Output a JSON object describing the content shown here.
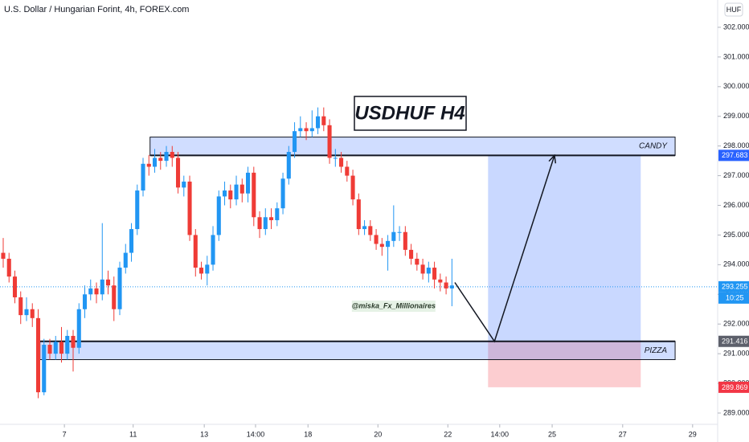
{
  "chart_data": {
    "type": "candlestick",
    "title": "U.S. Dollar / Hungarian Forint, 4h, FOREX.com",
    "currency": "HUF",
    "heading": "USDHUF H4",
    "watermark": "@miska_Fx_Millionaires",
    "up_color": "#2196f3",
    "down_color": "#ef3b36",
    "open": [
      294.4,
      294.2,
      293.6,
      292.9,
      292.3,
      292.5,
      292.2,
      289.7,
      291.3,
      291.0,
      291.4,
      291.0,
      291.6,
      291.2,
      292.5,
      293.0,
      293.2,
      293.0,
      293.5,
      293.3,
      292.5,
      293.9,
      294.4,
      295.2,
      296.5,
      297.4,
      297.3,
      297.6,
      297.5,
      297.8,
      297.6,
      296.6,
      296.8,
      295.0,
      293.9,
      293.7,
      294.0,
      295.0,
      296.3,
      296.5,
      296.2,
      296.7,
      296.4,
      297.1,
      295.6,
      295.2,
      295.6,
      295.5,
      295.9,
      296.9,
      297.8,
      298.5,
      298.6,
      298.5,
      298.6,
      299.0,
      298.7,
      297.6,
      297.6,
      297.3,
      297.0,
      296.2,
      295.2,
      295.3,
      295.0,
      294.7,
      294.6,
      294.8,
      295.1,
      295.1,
      294.5,
      294.2,
      294.0,
      293.7,
      293.9,
      293.5,
      293.4,
      293.2
    ],
    "high": [
      294.9,
      294.4,
      293.8,
      293.1,
      292.9,
      292.7,
      292.5,
      291.5,
      291.5,
      291.6,
      291.9,
      291.8,
      291.8,
      292.7,
      293.3,
      293.5,
      293.4,
      295.4,
      293.8,
      293.6,
      294.1,
      294.7,
      295.4,
      296.7,
      297.6,
      297.7,
      297.9,
      297.8,
      298.0,
      298.0,
      297.8,
      297.0,
      297.0,
      295.2,
      294.1,
      294.3,
      295.3,
      296.5,
      296.8,
      296.7,
      297.0,
      296.9,
      297.3,
      297.3,
      295.8,
      295.9,
      295.9,
      296.1,
      297.1,
      298.0,
      298.8,
      299.0,
      298.8,
      299.2,
      299.3,
      299.3,
      298.9,
      297.9,
      297.8,
      297.5,
      297.2,
      296.4,
      295.5,
      295.5,
      295.2,
      294.9,
      295.0,
      296.0,
      295.3,
      295.3,
      294.7,
      294.4,
      294.2,
      294.1,
      294.1,
      293.7,
      293.6,
      294.2
    ],
    "low": [
      293.9,
      293.4,
      292.7,
      292.0,
      292.1,
      291.9,
      289.5,
      289.6,
      290.8,
      290.8,
      290.7,
      290.8,
      290.4,
      291.0,
      292.2,
      292.8,
      292.7,
      292.8,
      293.0,
      292.1,
      292.3,
      293.7,
      294.1,
      295.0,
      296.3,
      297.0,
      297.1,
      297.2,
      297.3,
      297.3,
      296.4,
      296.3,
      294.8,
      293.6,
      293.5,
      293.3,
      293.8,
      294.8,
      296.0,
      295.9,
      296.0,
      296.1,
      296.1,
      295.3,
      294.9,
      295.0,
      295.2,
      295.3,
      295.7,
      296.7,
      297.6,
      298.3,
      298.2,
      298.3,
      298.4,
      298.5,
      297.4,
      297.3,
      297.1,
      296.8,
      296.0,
      295.0,
      295.0,
      294.8,
      294.5,
      294.3,
      293.8,
      294.6,
      294.8,
      294.3,
      294.0,
      293.8,
      293.5,
      293.4,
      293.2,
      293.1,
      293.0,
      292.6
    ],
    "close": [
      294.2,
      293.6,
      292.9,
      292.3,
      292.5,
      292.2,
      289.7,
      291.3,
      291.0,
      291.4,
      291.0,
      291.6,
      291.2,
      292.5,
      293.0,
      293.2,
      293.0,
      293.5,
      293.3,
      292.5,
      293.9,
      294.4,
      295.2,
      296.5,
      297.4,
      297.3,
      297.6,
      297.5,
      297.8,
      297.6,
      296.6,
      296.8,
      295.0,
      293.9,
      293.7,
      294.0,
      295.0,
      296.3,
      296.5,
      296.2,
      296.7,
      296.4,
      297.1,
      295.6,
      295.2,
      295.6,
      295.5,
      295.9,
      296.9,
      297.8,
      298.5,
      298.6,
      298.5,
      298.6,
      299.0,
      298.7,
      297.6,
      297.6,
      297.3,
      297.0,
      296.2,
      295.2,
      295.3,
      295.0,
      294.7,
      294.6,
      294.8,
      295.1,
      295.1,
      294.5,
      294.2,
      294.0,
      293.7,
      293.9,
      293.5,
      293.4,
      293.2,
      293.3
    ],
    "xlim": [
      -0.55,
      122.6
    ],
    "xticks": [
      {
        "value": 10.5,
        "label": "7"
      },
      {
        "value": 22.3,
        "label": "11"
      },
      {
        "value": 34.5,
        "label": "13"
      },
      {
        "value": 43.3,
        "label": "14:00"
      },
      {
        "value": 52.3,
        "label": "18"
      },
      {
        "value": 64.3,
        "label": "20"
      },
      {
        "value": 76.3,
        "label": "22"
      },
      {
        "value": 85.2,
        "label": "14:00"
      },
      {
        "value": 94.2,
        "label": "25"
      },
      {
        "value": 106.3,
        "label": "27"
      },
      {
        "value": 118.3,
        "label": "29"
      }
    ],
    "ylim": [
      288.62,
      302.92
    ],
    "yticks": [
      {
        "value": 289,
        "label": "289.000"
      },
      {
        "value": 290,
        "label": "290.000"
      },
      {
        "value": 291,
        "label": "291.000"
      },
      {
        "value": 292,
        "label": "292.000"
      },
      {
        "value": 293,
        "label": "293.000"
      },
      {
        "value": 294,
        "label": "294.000"
      },
      {
        "value": 295,
        "label": "295.000"
      },
      {
        "value": 296,
        "label": "296.000"
      },
      {
        "value": 297,
        "label": "297.000"
      },
      {
        "value": 298,
        "label": "298.000"
      },
      {
        "value": 299,
        "label": "299.000"
      },
      {
        "value": 300,
        "label": "300.000"
      },
      {
        "value": 301,
        "label": "301.000"
      },
      {
        "value": 302,
        "label": "302.000"
      }
    ],
    "zones": [
      {
        "label": "CANDY",
        "top": 298.3,
        "bottom": 297.683,
        "x0": 25.2,
        "x1": 115.3
      },
      {
        "label": "PIZZA",
        "top": 291.416,
        "bottom": 290.8,
        "x0": 6.3,
        "x1": 115.3
      }
    ],
    "projection": {
      "x0": 83.2,
      "x1": 109.4,
      "target": 297.683,
      "entry": 291.416,
      "stop": 289.869
    },
    "arrow": {
      "x": [
        77.5,
        84.3,
        94.6
      ],
      "y": [
        293.4,
        291.416,
        297.683
      ]
    },
    "last_price": 293.255,
    "countdown": "10:25",
    "price_labels": [
      {
        "value": 297.683,
        "color": "#2962ff"
      },
      {
        "value": 293.255,
        "color": "#2196f3"
      },
      {
        "value": 291.416,
        "color": "#5d606b"
      },
      {
        "value": 289.869,
        "color": "#f23645"
      }
    ]
  }
}
